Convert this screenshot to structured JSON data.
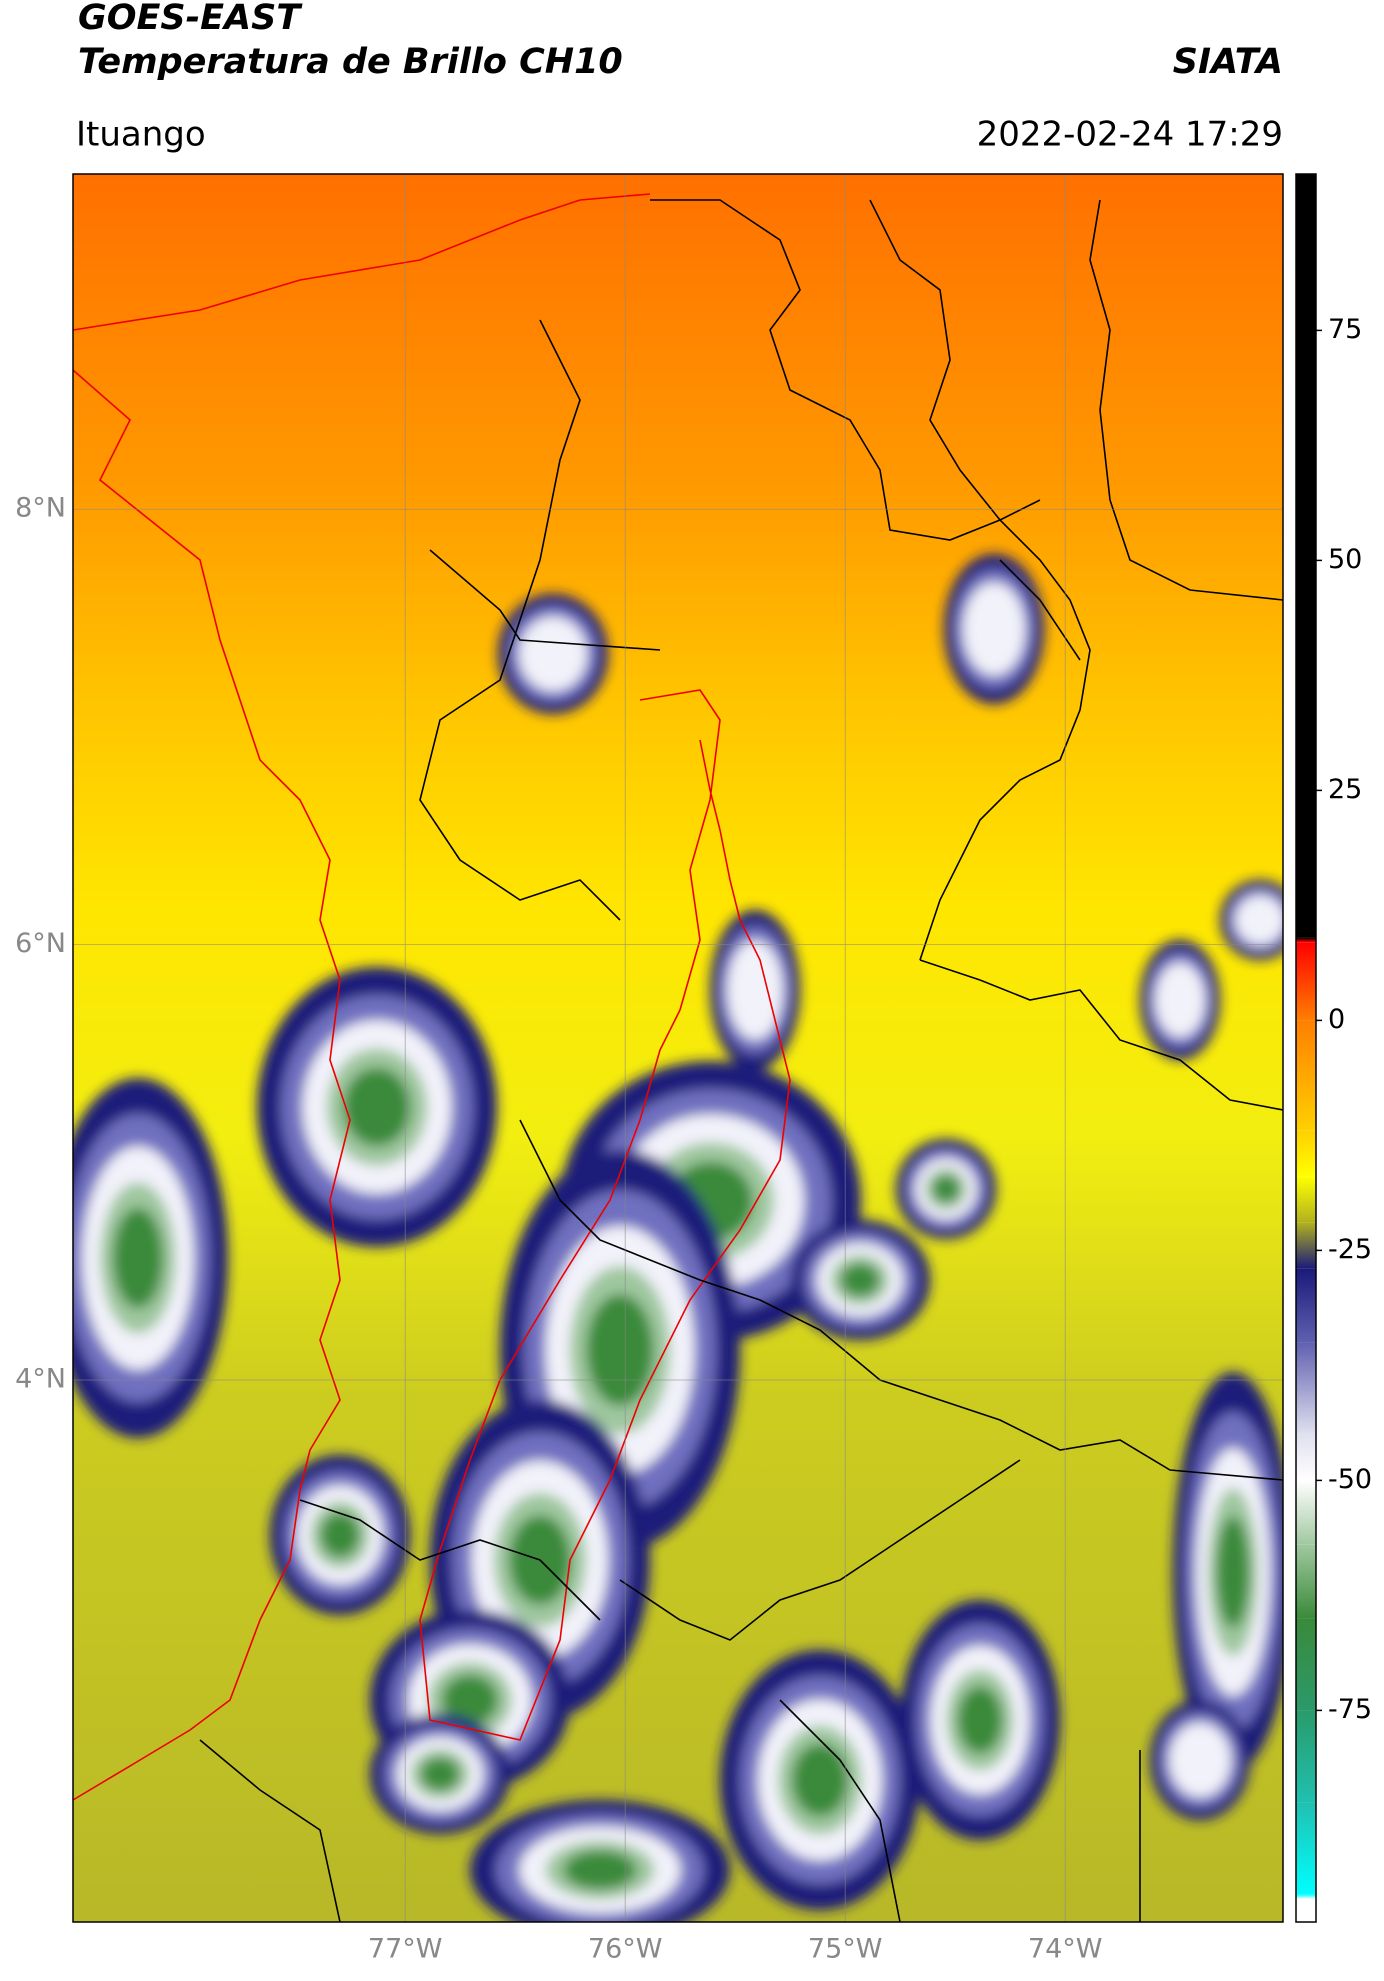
{
  "header": {
    "title": "GOES-EAST",
    "subtitle": "Temperatura de Brillo CH10",
    "brand": "SIATA",
    "location": "Ituango",
    "datetime": "2022-02-24 17:29"
  },
  "map": {
    "xlim": [
      -78.51,
      -73.01
    ],
    "ylim": [
      1.51,
      9.54
    ],
    "xticks": [
      {
        "value": -77,
        "label": "77°W"
      },
      {
        "value": -76,
        "label": "76°W"
      },
      {
        "value": -75,
        "label": "75°W"
      },
      {
        "value": -74,
        "label": "74°W"
      }
    ],
    "yticks": [
      {
        "value": 4,
        "label": "4°N"
      },
      {
        "value": 6,
        "label": "6°N"
      },
      {
        "value": 8,
        "label": "8°N"
      }
    ],
    "grid": true
  },
  "colorbar": {
    "clim": [
      -98,
      92
    ],
    "ticks": [
      -75,
      -50,
      -25,
      0,
      25,
      50,
      75
    ],
    "stops": [
      {
        "value": -98,
        "color": "#ffffff"
      },
      {
        "value": -95.5,
        "color": "#ffffff"
      },
      {
        "value": -95,
        "color": "#00ffff"
      },
      {
        "value": -85,
        "color": "#20c0b0"
      },
      {
        "value": -75,
        "color": "#2a9a6a"
      },
      {
        "value": -65,
        "color": "#3a8a3a"
      },
      {
        "value": -57,
        "color": "#a0c8a0"
      },
      {
        "value": -50,
        "color": "#ffffff"
      },
      {
        "value": -45,
        "color": "#e0e0f0"
      },
      {
        "value": -35,
        "color": "#6060b0"
      },
      {
        "value": -27,
        "color": "#1a1a7a"
      },
      {
        "value": -22,
        "color": "#b0b020"
      },
      {
        "value": -17,
        "color": "#ffff00"
      },
      {
        "value": -12,
        "color": "#ffd000"
      },
      {
        "value": 0,
        "color": "#ff7f00"
      },
      {
        "value": 8.5,
        "color": "#ff0000"
      },
      {
        "value": 9,
        "color": "#000000"
      },
      {
        "value": 92,
        "color": "#000000"
      }
    ]
  }
}
